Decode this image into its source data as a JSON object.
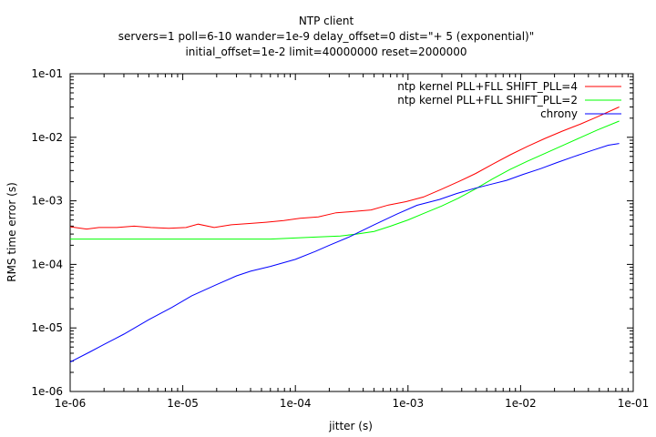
{
  "chart_data": {
    "type": "line",
    "title": "NTP client",
    "subtitle_lines": [
      "servers=1 poll=6-10 wander=1e-9 delay_offset=0 dist=\"+ 5 (exponential)\"",
      "initial_offset=1e-2 limit=40000000 reset=2000000"
    ],
    "xlabel": "jitter (s)",
    "ylabel": "RMS time error (s)",
    "xscale": "log",
    "yscale": "log",
    "xlim": [
      1e-06,
      0.1
    ],
    "ylim": [
      1e-06,
      0.1
    ],
    "x_tick_labels": [
      "1e-06",
      "1e-05",
      "1e-04",
      "1e-03",
      "1e-02",
      "1e-01"
    ],
    "y_tick_labels": [
      "1e-06",
      "1e-05",
      "1e-04",
      "1e-03",
      "1e-02",
      "1e-01"
    ],
    "grid": false,
    "legend_position": "top-right",
    "series": [
      {
        "name": "ntp kernel PLL+FLL SHIFT_PLL=4",
        "color": "#ff0000",
        "x": [
          1e-06,
          1.4e-06,
          1.8e-06,
          2.6e-06,
          3.7e-06,
          5.2e-06,
          7.5e-06,
          1.07e-05,
          1.37e-05,
          1.9e-05,
          2.7e-05,
          3.9e-05,
          5.5e-05,
          7.9e-05,
          0.00011,
          0.00016,
          0.00023,
          0.00033,
          0.00047,
          0.00067,
          0.00096,
          0.00137,
          0.00195,
          0.0028,
          0.004,
          0.0057,
          0.0081,
          0.0115,
          0.0165,
          0.0235,
          0.0335,
          0.048,
          0.075
        ],
        "y": [
          0.00039,
          0.00036,
          0.00038,
          0.00038,
          0.0004,
          0.00038,
          0.00037,
          0.00038,
          0.00043,
          0.00038,
          0.00042,
          0.00044,
          0.00046,
          0.00049,
          0.00053,
          0.00056,
          0.00065,
          0.00068,
          0.00072,
          0.00086,
          0.00097,
          0.00115,
          0.0015,
          0.002,
          0.0027,
          0.0038,
          0.0053,
          0.0072,
          0.0096,
          0.0125,
          0.016,
          0.021,
          0.03
        ]
      },
      {
        "name": "ntp kernel PLL+FLL SHIFT_PLL=2",
        "color": "#00ff00",
        "x": [
          1e-06,
          2e-06,
          4e-06,
          7e-06,
          1.2e-05,
          2e-05,
          3.5e-05,
          6e-05,
          0.0001,
          0.00016,
          0.00025,
          0.00035,
          0.0005,
          0.0007,
          0.001,
          0.0014,
          0.002,
          0.0028,
          0.004,
          0.0056,
          0.008,
          0.0115,
          0.0165,
          0.0235,
          0.0335,
          0.048,
          0.075
        ],
        "y": [
          0.00025,
          0.00025,
          0.00025,
          0.00025,
          0.00025,
          0.00025,
          0.00025,
          0.00025,
          0.00026,
          0.00027,
          0.00028,
          0.0003,
          0.00033,
          0.0004,
          0.0005,
          0.00064,
          0.00083,
          0.0011,
          0.00155,
          0.0022,
          0.0031,
          0.0042,
          0.0056,
          0.0074,
          0.0098,
          0.013,
          0.018
        ]
      },
      {
        "name": "chrony",
        "color": "#0000ff",
        "x": [
          1e-06,
          1.5e-06,
          2e-06,
          3e-06,
          5e-06,
          8e-06,
          1.2e-05,
          2e-05,
          3e-05,
          4e-05,
          6e-05,
          0.0001,
          0.00015,
          0.0002,
          0.0003,
          0.0005,
          0.0008,
          0.0012,
          0.0019,
          0.0027,
          0.0038,
          0.0053,
          0.0075,
          0.0105,
          0.015,
          0.021,
          0.03,
          0.043,
          0.06,
          0.075
        ],
        "y": [
          2.9e-06,
          4.2e-06,
          5.5e-06,
          8e-06,
          1.35e-05,
          2.1e-05,
          3.2e-05,
          4.8e-05,
          6.6e-05,
          7.8e-05,
          9.3e-05,
          0.00012,
          0.00016,
          0.0002,
          0.00027,
          0.00042,
          0.00062,
          0.00085,
          0.00105,
          0.0013,
          0.00155,
          0.0018,
          0.0021,
          0.0026,
          0.0032,
          0.004,
          0.005,
          0.0062,
          0.0075,
          0.008
        ]
      }
    ]
  }
}
